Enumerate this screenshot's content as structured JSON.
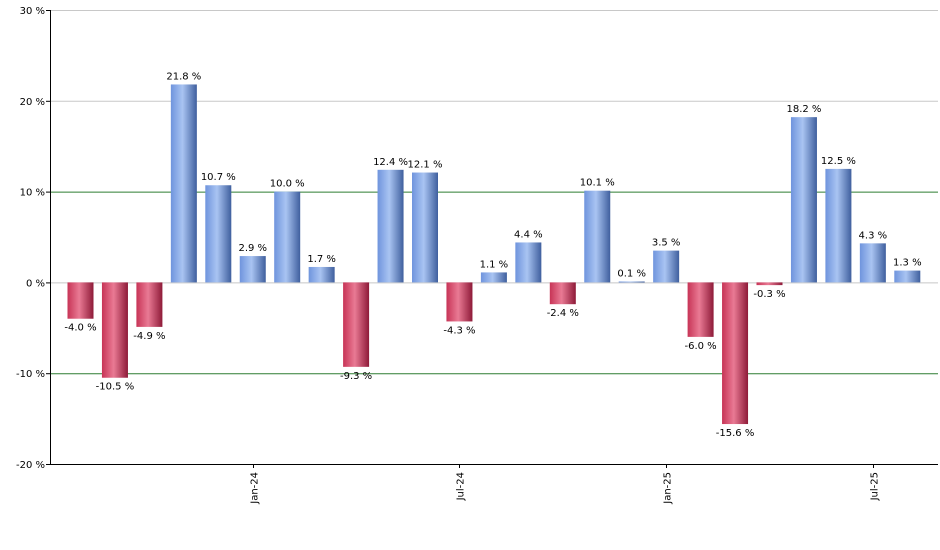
{
  "chart_data": {
    "type": "bar",
    "title": "",
    "xlabel": "",
    "ylabel": "",
    "ylim": [
      -20,
      30
    ],
    "y_ticks": [
      -20,
      -10,
      0,
      10,
      20,
      30
    ],
    "y_tick_suffix": " %",
    "highlight_gridlines": [
      -10,
      10
    ],
    "values": [
      -4.0,
      -10.5,
      -4.9,
      21.8,
      10.7,
      2.9,
      10.0,
      1.7,
      -9.3,
      12.4,
      12.1,
      -4.3,
      1.1,
      4.4,
      -2.4,
      10.1,
      0.1,
      3.5,
      -6.0,
      -15.6,
      -0.3,
      18.2,
      12.5,
      4.3,
      1.3
    ],
    "data_labels": [
      "-4.0 %",
      "-10.5 %",
      "-4.9 %",
      "21.8 %",
      "10.7 %",
      "2.9 %",
      "10.0 %",
      "1.7 %",
      "-9.3 %",
      "12.4 %",
      "12.1 %",
      "-4.3 %",
      "1.1 %",
      "4.4 %",
      "-2.4 %",
      "10.1 %",
      "0.1 %",
      "3.5 %",
      "-6.0 %",
      "-15.6 %",
      "-0.3 %",
      "18.2 %",
      "12.5 %",
      "4.3 %",
      "1.3 %"
    ],
    "x_tick_labels": [
      {
        "label": "Jan-24",
        "bar_index": 5
      },
      {
        "label": "Jul-24",
        "bar_index": 11
      },
      {
        "label": "Jan-25",
        "bar_index": 17
      },
      {
        "label": "Jul-25",
        "bar_index": 23
      }
    ],
    "colors": {
      "positive_light": "#a9c4f2",
      "positive_mid": "#6f94dd",
      "positive_dark": "#3f5f9e",
      "negative_light": "#e97a94",
      "negative_mid": "#c73456",
      "negative_dark": "#8e1a38",
      "grid": "#c8c8c8",
      "highlight_grid": "#2e7d32",
      "axis": "#000000"
    },
    "grid": true
  }
}
